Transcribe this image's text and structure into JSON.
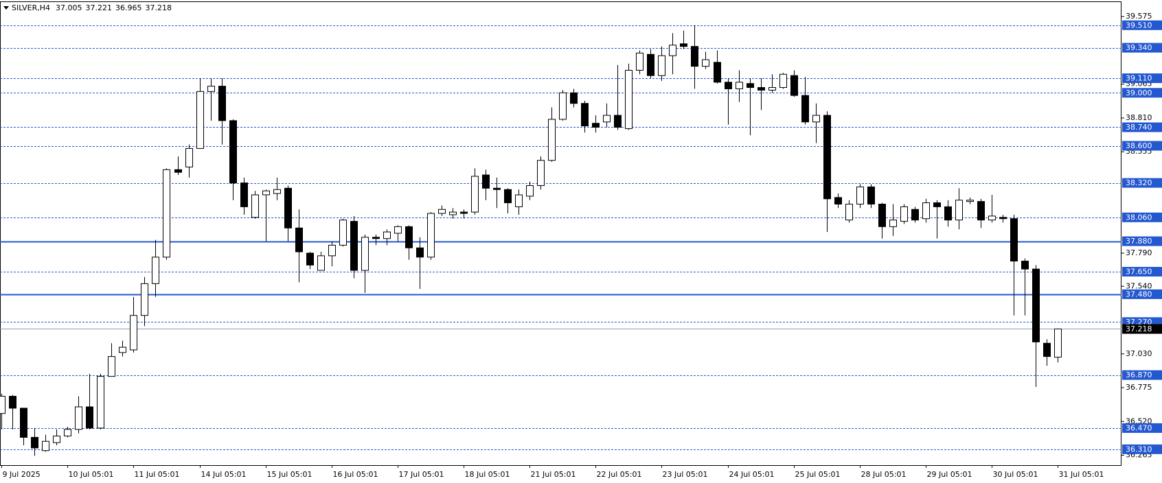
{
  "chart_data": {
    "type": "candlestick",
    "title": "SILVER,H4",
    "categories": [
      "9 Jul 2025",
      null,
      null,
      null,
      null,
      null,
      "10 Jul 05:01",
      null,
      null,
      null,
      null,
      null,
      "11 Jul 05:01",
      null,
      null,
      null,
      null,
      null,
      "14 Jul 05:01",
      null,
      null,
      null,
      null,
      null,
      "15 Jul 05:01",
      null,
      null,
      null,
      null,
      null,
      "16 Jul 05:01",
      null,
      null,
      null,
      null,
      null,
      "17 Jul 05:01",
      null,
      null,
      null,
      null,
      null,
      "18 Jul 05:01",
      null,
      null,
      null,
      null,
      null,
      "21 Jul 05:01",
      null,
      null,
      null,
      null,
      null,
      "22 Jul 05:01",
      null,
      null,
      null,
      null,
      null,
      "23 Jul 05:01",
      null,
      null,
      null,
      null,
      null,
      "24 Jul 05:01",
      null,
      null,
      null,
      null,
      null,
      "25 Jul 05:01",
      null,
      null,
      null,
      null,
      null,
      "28 Jul 05:01",
      null,
      null,
      null,
      null,
      null,
      "29 Jul 05:01",
      null,
      null,
      null,
      null,
      null,
      "30 Jul 05:01",
      null,
      null,
      null,
      null,
      null,
      "31 Jul 05:01"
    ],
    "open": [
      36.58,
      36.71,
      36.62,
      36.4,
      36.3,
      36.36,
      36.41,
      36.46,
      36.63,
      36.47,
      36.86,
      37.04,
      37.06,
      37.32,
      37.56,
      37.76,
      38.42,
      38.44,
      38.58,
      39.01,
      39.05,
      38.79,
      38.32,
      38.06,
      38.23,
      38.24,
      38.28,
      37.98,
      37.79,
      37.66,
      37.77,
      37.85,
      38.03,
      37.66,
      37.91,
      37.9,
      37.94,
      37.99,
      37.83,
      37.76,
      38.09,
      38.08,
      38.1,
      38.1,
      38.38,
      38.28,
      38.27,
      38.14,
      38.22,
      38.3,
      38.49,
      38.8,
      39.0,
      38.92,
      38.77,
      38.78,
      38.83,
      38.73,
      39.17,
      39.29,
      39.13,
      39.28,
      39.37,
      39.35,
      39.2,
      39.23,
      39.08,
      39.03,
      39.07,
      39.04,
      39.02,
      39.04,
      39.13,
      38.98,
      38.78,
      38.83,
      38.21,
      38.04,
      38.16,
      38.29,
      38.16,
      37.99,
      38.03,
      38.12,
      38.05,
      38.17,
      38.14,
      38.04,
      38.18,
      38.18,
      38.04,
      38.06,
      38.05,
      37.73,
      37.67,
      37.11,
      37.005
    ],
    "high": [
      36.73,
      36.72,
      36.62,
      36.47,
      36.42,
      36.46,
      36.48,
      36.71,
      36.88,
      36.88,
      37.11,
      37.13,
      37.46,
      37.61,
      37.89,
      38.43,
      38.52,
      38.61,
      39.11,
      39.11,
      39.11,
      38.8,
      38.36,
      38.26,
      38.27,
      38.36,
      38.3,
      38.12,
      37.8,
      37.8,
      37.88,
      38.05,
      38.07,
      37.93,
      37.93,
      37.97,
      38.0,
      38.0,
      37.91,
      38.1,
      38.15,
      38.13,
      38.12,
      38.43,
      38.42,
      38.36,
      38.28,
      38.27,
      38.33,
      38.52,
      38.89,
      39.02,
      39.03,
      38.94,
      38.83,
      38.92,
      39.21,
      39.22,
      39.32,
      39.33,
      39.35,
      39.45,
      39.47,
      39.51,
      39.31,
      39.32,
      39.11,
      39.17,
      39.11,
      39.11,
      39.14,
      39.15,
      39.17,
      39.12,
      38.92,
      38.86,
      38.24,
      38.19,
      38.31,
      38.31,
      38.17,
      38.16,
      38.16,
      38.14,
      38.2,
      38.19,
      38.19,
      38.28,
      38.21,
      38.2,
      38.23,
      38.08,
      38.08,
      37.75,
      37.7,
      37.14,
      37.221
    ],
    "low": [
      36.46,
      36.46,
      36.34,
      36.26,
      36.29,
      36.34,
      36.4,
      36.43,
      36.46,
      36.46,
      36.86,
      37.01,
      37.04,
      37.24,
      37.46,
      37.74,
      38.38,
      38.36,
      38.58,
      38.79,
      38.61,
      38.19,
      38.08,
      38.05,
      37.88,
      38.19,
      37.88,
      37.57,
      37.67,
      37.66,
      37.69,
      37.84,
      37.6,
      37.49,
      37.85,
      37.85,
      37.88,
      37.74,
      37.52,
      37.74,
      38.07,
      38.05,
      38.05,
      38.08,
      38.19,
      38.13,
      38.09,
      38.08,
      38.19,
      38.27,
      38.48,
      38.79,
      38.89,
      38.7,
      38.7,
      38.74,
      38.72,
      38.72,
      39.14,
      39.11,
      39.09,
      39.14,
      39.33,
      39.03,
      39.18,
      39.07,
      38.76,
      38.93,
      38.68,
      38.87,
      39.0,
      39.03,
      38.97,
      38.76,
      38.62,
      37.95,
      38.13,
      38.02,
      38.13,
      38.13,
      37.9,
      37.92,
      38.01,
      38.02,
      38.02,
      37.9,
      37.99,
      37.97,
      38.16,
      37.98,
      38.02,
      38.02,
      37.32,
      37.32,
      36.78,
      36.94,
      36.965
    ],
    "close": [
      36.71,
      36.62,
      36.4,
      36.32,
      36.37,
      36.41,
      36.46,
      36.63,
      36.47,
      36.86,
      37.01,
      37.08,
      37.32,
      37.56,
      37.76,
      38.42,
      38.4,
      38.58,
      39.01,
      39.05,
      38.79,
      38.32,
      38.14,
      38.23,
      38.26,
      38.27,
      37.98,
      37.8,
      37.7,
      37.77,
      37.85,
      38.04,
      37.66,
      37.91,
      37.9,
      37.95,
      37.99,
      37.83,
      37.76,
      38.09,
      38.12,
      38.1,
      38.09,
      38.37,
      38.28,
      38.27,
      38.17,
      38.23,
      38.3,
      38.49,
      38.8,
      39.0,
      38.92,
      38.75,
      38.74,
      38.83,
      38.74,
      39.17,
      39.3,
      39.13,
      39.28,
      39.36,
      39.35,
      39.2,
      39.25,
      39.08,
      39.03,
      39.08,
      39.04,
      39.02,
      39.04,
      39.14,
      38.98,
      38.78,
      38.83,
      38.2,
      38.16,
      38.16,
      38.29,
      38.16,
      37.99,
      38.04,
      38.14,
      38.04,
      38.17,
      38.14,
      38.04,
      38.19,
      38.19,
      38.04,
      38.07,
      38.05,
      37.73,
      37.67,
      37.12,
      37.01,
      37.218
    ],
    "up_color": "#ffffff",
    "down_color": "#000000",
    "level_color": "#2458d0",
    "ylim": [
      36.19,
      39.69
    ],
    "yticks": [
      39.575,
      39.065,
      {
        "value": 38.81,
        "label": "38.810"
      },
      38.555,
      {
        "value": 37.79,
        "label": "37.790"
      },
      {
        "value": 37.54,
        "label": "37.540"
      },
      {
        "value": 37.03,
        "label": "37.030"
      },
      36.775,
      {
        "value": 36.52,
        "label": "36.520"
      },
      36.265
    ],
    "levels": [
      {
        "value": 39.51,
        "label": "39.510",
        "style": "dashed"
      },
      {
        "value": 39.34,
        "label": "39.340",
        "style": "dashed"
      },
      {
        "value": 39.11,
        "label": "39.110",
        "style": "dashed"
      },
      {
        "value": 39.0,
        "label": "39.000",
        "style": "dashed"
      },
      {
        "value": 38.74,
        "label": "38.740",
        "style": "dashed"
      },
      {
        "value": 38.6,
        "label": "38.600",
        "style": "dashed"
      },
      {
        "value": 38.32,
        "label": "38.320",
        "style": "dashed"
      },
      {
        "value": 38.06,
        "label": "38.060",
        "style": "dashed"
      },
      {
        "value": 37.88,
        "label": "37.880",
        "style": "solid"
      },
      {
        "value": 37.65,
        "label": "37.650",
        "style": "dashed"
      },
      {
        "value": 37.48,
        "label": "37.480",
        "style": "solid"
      },
      {
        "value": 37.27,
        "label": "37.270",
        "style": "dashed"
      },
      {
        "value": 36.87,
        "label": "36.870",
        "style": "dashed"
      },
      {
        "value": 36.47,
        "label": "36.470",
        "style": "dashed"
      },
      {
        "value": 36.31,
        "label": "36.310",
        "style": "dashed"
      }
    ]
  }
}
